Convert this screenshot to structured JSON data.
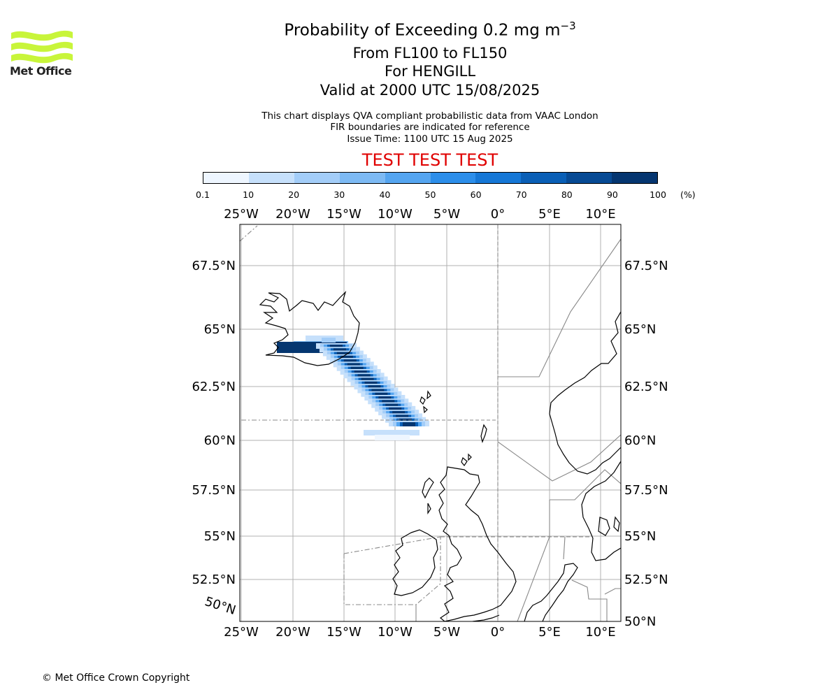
{
  "brand": {
    "name": "Met Office",
    "logo_color": "#c8f53a"
  },
  "title": {
    "main": "Probability of Exceeding 0.2 mg m",
    "main_superscript": "−3",
    "levels": "From FL100 to FL150",
    "location": "For HENGILL",
    "valid": "Valid at 2000 UTC 15/08/2025"
  },
  "info": {
    "line1": "This chart displays QVA compliant probabilistic data from VAAC London",
    "line2": "FIR boundaries are indicated for reference",
    "line3": "Issue Time: 1100 UTC 15 Aug 2025"
  },
  "test_banner": "TEST TEST TEST",
  "colorbar": {
    "ticks": [
      "0.1",
      "10",
      "20",
      "30",
      "40",
      "50",
      "60",
      "70",
      "80",
      "90",
      "100"
    ],
    "unit": "(%)",
    "colors": [
      "#eef6ff",
      "#c6e0fb",
      "#a3cdf8",
      "#7dbaf4",
      "#55a5f0",
      "#2c8eea",
      "#1577d6",
      "#0a5fb6",
      "#074a94",
      "#053670"
    ]
  },
  "map": {
    "lon_labels": [
      "25°W",
      "20°W",
      "15°W",
      "10°W",
      "5°W",
      "0°",
      "5°E",
      "10°E"
    ],
    "lat_labels": [
      "67.5°N",
      "65°N",
      "62.5°N",
      "60°N",
      "57.5°N",
      "55°N",
      "52.5°N",
      "50°N"
    ],
    "lat_label_left_bottom": "50°N"
  },
  "copyright": "© Met Office Crown Copyright"
}
